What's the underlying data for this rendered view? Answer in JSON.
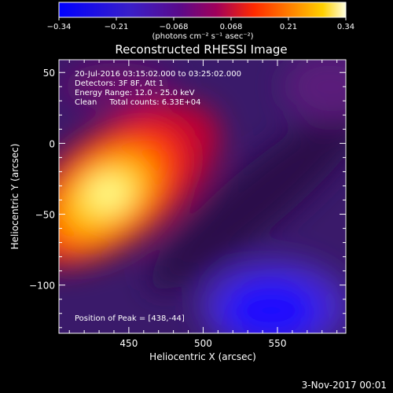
{
  "chart_data": {
    "type": "heatmap",
    "title": "Reconstructed RHESSI Image",
    "xlabel": "Heliocentric X (arcsec)",
    "ylabel": "Heliocentric Y (arcsec)",
    "xlim": [
      403,
      596
    ],
    "ylim": [
      -134,
      59
    ],
    "x_ticks": [
      450,
      500,
      550
    ],
    "y_ticks": [
      50,
      0,
      -50,
      -100
    ],
    "colorbar": {
      "min": -0.34,
      "max": 0.34,
      "ticks": [
        "-0.34",
        "-0.21",
        "-0.068",
        "0.068",
        "0.21",
        "0.34"
      ],
      "unit_label": "(photons cm⁻² s⁻¹ asec⁻²)"
    },
    "annotations": [
      "20-Jul-2016 03:15:02.000 to 03:25:02.000",
      "Detectors: 3F 8F, Att 1",
      "Energy Range: 12.0 - 25.0 keV",
      "Clean     Total counts: 6.33E+04"
    ],
    "peak_label": "Position of Peak = [438,-44]",
    "peak": {
      "x": 438,
      "y": -44,
      "value": 0.34
    },
    "negative_lobe": {
      "x": 545,
      "y": -120,
      "value": -0.32
    },
    "footer_date": "3-Nov-2017 00:01"
  }
}
